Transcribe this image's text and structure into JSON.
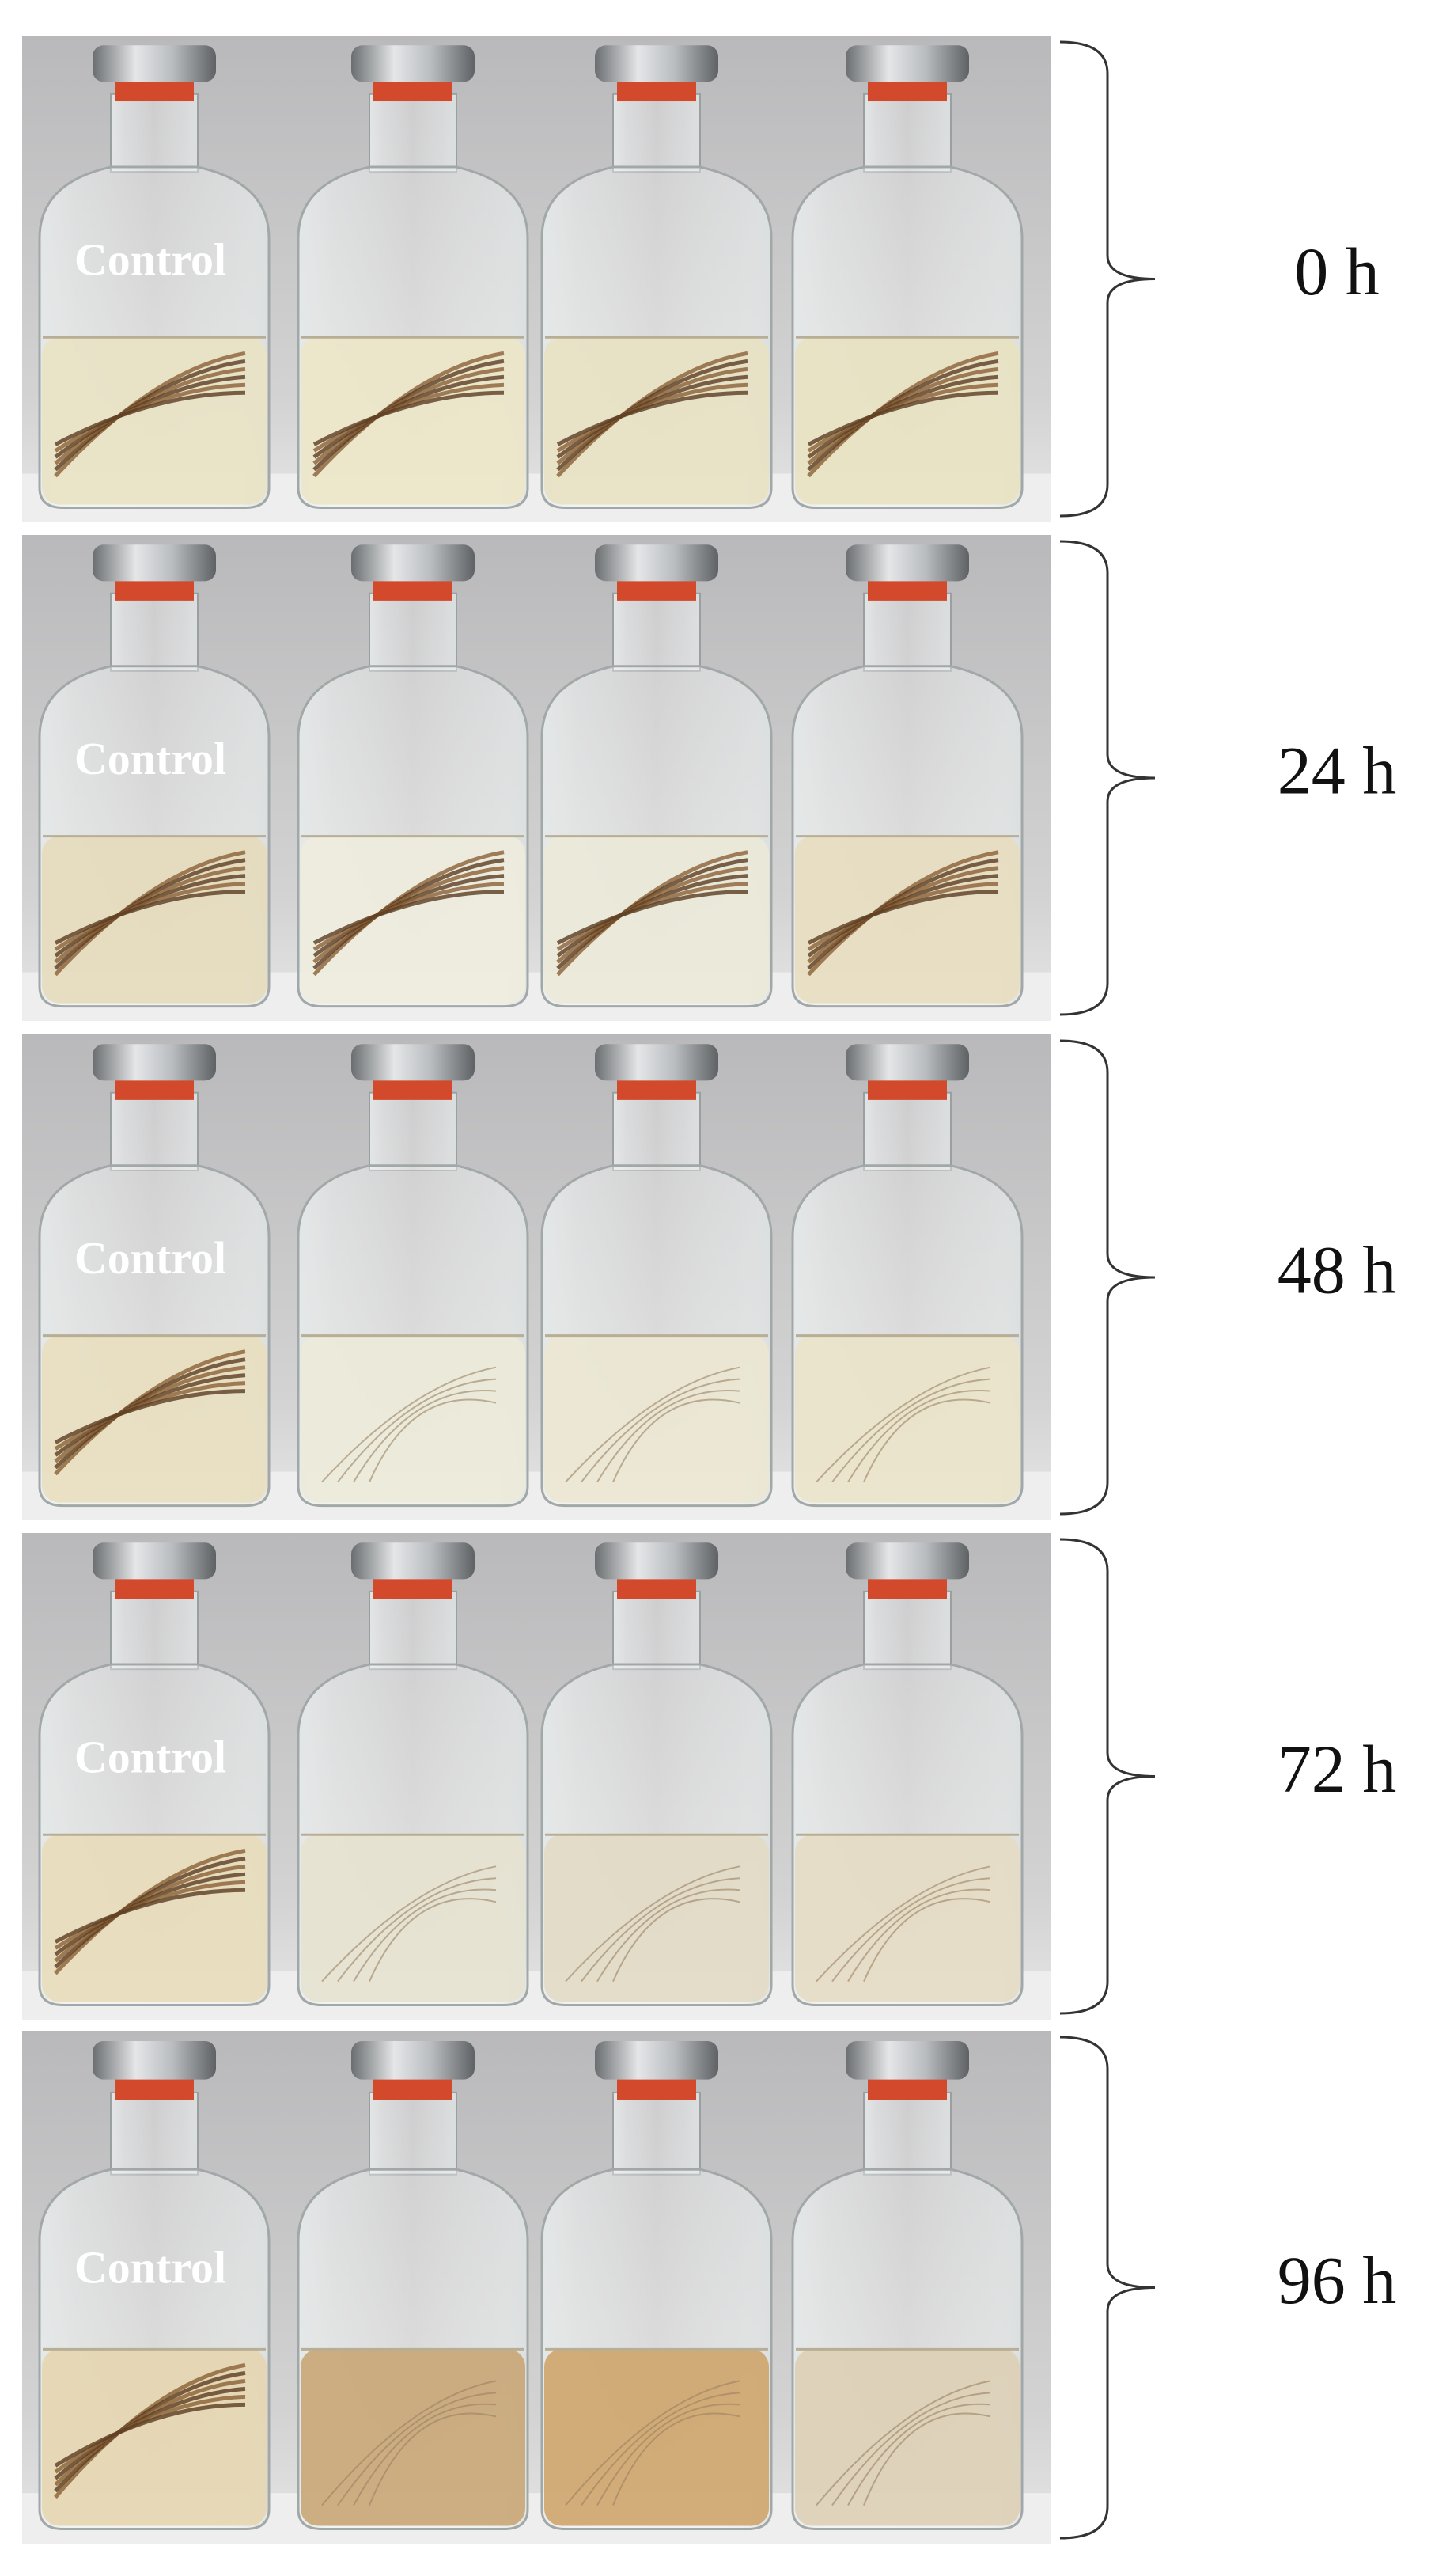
{
  "panels": [
    {
      "label": "Control",
      "time": "0 h"
    },
    {
      "label": "Control",
      "time": "24 h"
    },
    {
      "label": "Control",
      "time": "48 h"
    },
    {
      "label": "Control",
      "time": "72 h"
    },
    {
      "label": "Control",
      "time": "96 h"
    }
  ]
}
